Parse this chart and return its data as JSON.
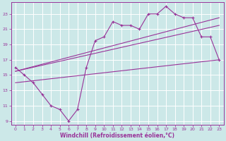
{
  "xlabel": "Windchill (Refroidissement éolien,°C)",
  "background_color": "#cce8e8",
  "line_color": "#993399",
  "grid_color": "#ffffff",
  "xlim": [
    -0.5,
    23.5
  ],
  "ylim": [
    8.5,
    24.5
  ],
  "xticks": [
    0,
    1,
    2,
    3,
    4,
    5,
    6,
    7,
    8,
    9,
    10,
    11,
    12,
    13,
    14,
    15,
    16,
    17,
    18,
    19,
    20,
    21,
    22,
    23
  ],
  "yticks": [
    9,
    11,
    13,
    15,
    17,
    19,
    21,
    23
  ],
  "series1_x": [
    0,
    1,
    2,
    3,
    4,
    5,
    6,
    7,
    8,
    9,
    10,
    11,
    12,
    13,
    14,
    15,
    16,
    17,
    18,
    19,
    20,
    21,
    22,
    23
  ],
  "series1_y": [
    16.0,
    15.0,
    14.0,
    12.5,
    11.0,
    10.5,
    9.0,
    10.5,
    16.0,
    19.5,
    20.0,
    22.0,
    21.5,
    21.5,
    21.0,
    23.0,
    23.0,
    24.0,
    23.0,
    22.5,
    22.5,
    20.0,
    20.0,
    17.0
  ],
  "line1_x": [
    0,
    23
  ],
  "line1_y": [
    15.5,
    22.5
  ],
  "line2_x": [
    0,
    23
  ],
  "line2_y": [
    14.0,
    17.0
  ],
  "line3_x": [
    0,
    23
  ],
  "line3_y": [
    15.5,
    21.5
  ]
}
